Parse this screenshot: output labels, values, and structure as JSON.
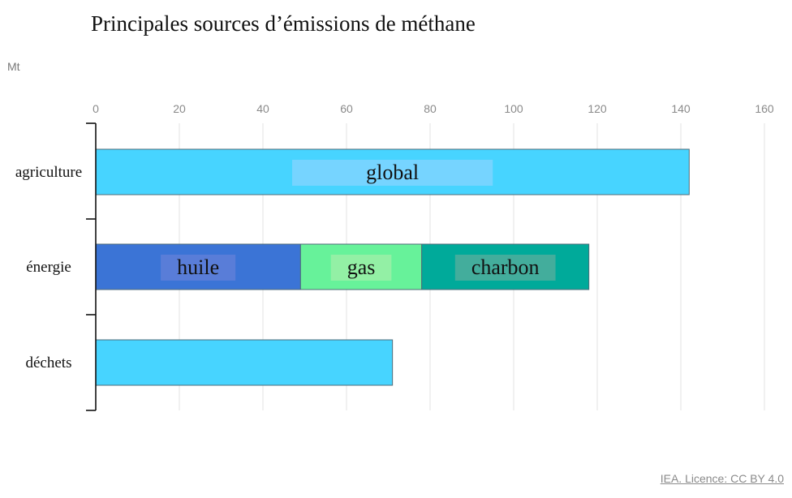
{
  "title": "Principales sources d’émissions de méthane",
  "unit_label": "Mt",
  "source_text": "IEA. Licence: CC BY 4.0",
  "chart_data": {
    "type": "bar",
    "orientation": "horizontal",
    "stacked": true,
    "xlim": [
      0,
      160
    ],
    "x_ticks": [
      0,
      20,
      40,
      60,
      80,
      100,
      120,
      140,
      160
    ],
    "grid": true,
    "categories": [
      "agriculture",
      "énergie",
      "déchets"
    ],
    "series": [
      {
        "name": "global",
        "color": "#47d4ff",
        "values": [
          142,
          null,
          71
        ]
      },
      {
        "name": "huile",
        "color": "#3b74d6",
        "values": [
          null,
          49,
          null
        ]
      },
      {
        "name": "gas",
        "color": "#67f29a",
        "values": [
          null,
          29,
          null
        ]
      },
      {
        "name": "charbon",
        "color": "#00aa9a",
        "values": [
          null,
          40,
          null
        ]
      }
    ],
    "segment_labels": [
      {
        "text": "global",
        "category": "agriculture",
        "series": "global",
        "highlight": "#7fd3ff"
      },
      {
        "text": "huile",
        "category": "énergie",
        "series": "huile",
        "highlight": "#5f7fd8"
      },
      {
        "text": "gas",
        "category": "énergie",
        "series": "gas",
        "highlight": "#9bf0a7"
      },
      {
        "text": "charbon",
        "category": "énergie",
        "series": "charbon",
        "highlight": "#4fae9c"
      }
    ]
  }
}
